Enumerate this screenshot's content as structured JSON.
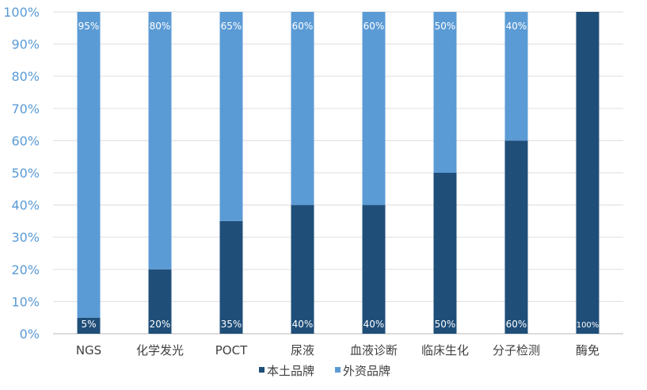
{
  "chart_data": {
    "type": "bar",
    "stacked": true,
    "percent_stacked": true,
    "categories": [
      "NGS",
      "化学发光",
      "POCT",
      "尿液",
      "血液诊断",
      "临床生化",
      "分子检测",
      "酶免"
    ],
    "series": [
      {
        "name": "本土品牌",
        "color": "#1f4e79",
        "values": [
          5,
          20,
          35,
          40,
          40,
          50,
          60,
          100
        ],
        "labels": [
          "5%",
          "20%",
          "35%",
          "40%",
          "40%",
          "50%",
          "60%",
          "100%"
        ]
      },
      {
        "name": "外资品牌",
        "color": "#5b9bd5",
        "values": [
          95,
          80,
          65,
          60,
          60,
          50,
          40,
          0
        ],
        "labels": [
          "95%",
          "80%",
          "65%",
          "60%",
          "60%",
          "50%",
          "40%",
          ""
        ]
      }
    ],
    "yticks": [
      "0%",
      "10%",
      "20%",
      "30%",
      "40%",
      "50%",
      "60%",
      "70%",
      "80%",
      "90%",
      "100%"
    ],
    "ylim": [
      0,
      100
    ],
    "grid": true,
    "legend": "bottom"
  }
}
